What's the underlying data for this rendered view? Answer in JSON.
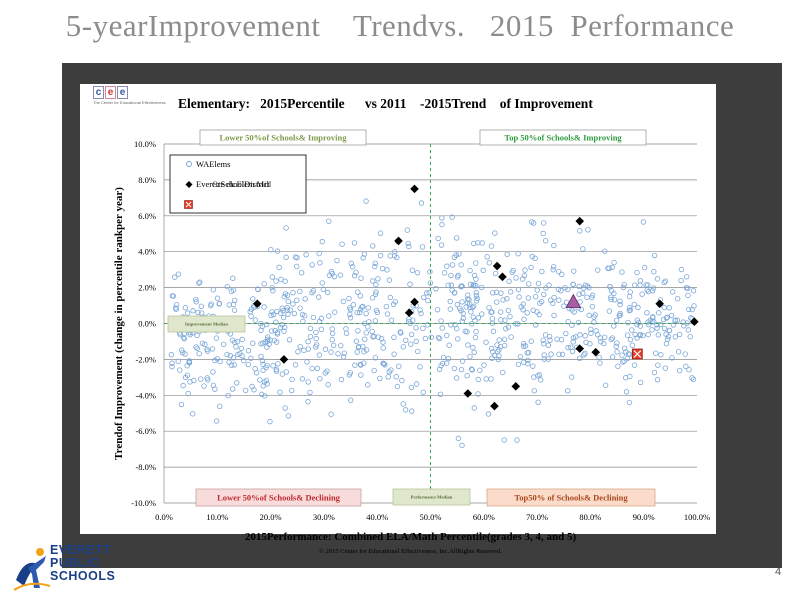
{
  "slide": {
    "title": "5-yearImprovement    Trendvs.   2015  Performance",
    "page_number": "4"
  },
  "logo": {
    "ceee_letters": [
      "c",
      "e",
      "e"
    ],
    "ceee_tagline": "The Center for Educational Effectiveness",
    "district_lines": [
      "EVERETT",
      "PUBLIC",
      "SCHOOLS"
    ]
  },
  "colors": {
    "background_band": "#3d3d3d",
    "wa_marker": "#7aa6d8",
    "district_marker": "#000000",
    "school_marker": "#e53d2a",
    "highlight_marker": "#a85ca6",
    "reference_line": "#3aa657",
    "title_gray": "#8c8c8c",
    "eps_blue": "#1b3f86"
  },
  "chart_data": {
    "type": "scatter",
    "title": "Elementary:   2015Percentile      vs 2011    -2015Trend    of Improvement",
    "xlabel": "2015Performance: Combined ELA/Math Percentile(grades 3, 4, and 5)",
    "ylabel": "Trendof Improvement (change in percentile   rankper year)",
    "xlim": [
      0,
      100
    ],
    "ylim": [
      -10,
      10
    ],
    "x_ticks": [
      "0.0%",
      "10.0%",
      "20.0%",
      "30.0%",
      "40.0%",
      "50.0%",
      "60.0%",
      "70.0%",
      "80.0%",
      "90.0%",
      "100.0%"
    ],
    "y_ticks": [
      "-10.0%",
      "-8.0%",
      "-6.0%",
      "-4.0%",
      "-2.0%",
      "0.0%",
      "2.0%",
      "4.0%",
      "6.0%",
      "8.0%",
      "10.0%"
    ],
    "grid": "horizontal",
    "legend_placement": "top-left",
    "legend": {
      "wa": "WAElems",
      "district": "EverettSchoolDistrict",
      "school_overlap": "Cre   ek  Elem   Mill"
    },
    "reference_lines": {
      "x": 50,
      "y": 0
    },
    "quadrant_labels": {
      "top_left": "Lower 50%of Schools& Improving",
      "top_right": "Top 50%of Schools& Improving",
      "bottom_left": "Lower 50%of Schools& Declining",
      "bottom_right": "Top50% of Schools& Declining",
      "mid_left": "Improvement     Median",
      "mid_bottom": "Performance     Median"
    },
    "copyright": "© 2015 Center for Educational Effectiveness, Inc.AllRights Reserved.",
    "series": [
      {
        "name": "EverettSchoolDistrict",
        "marker": "diamond",
        "points": [
          [
            17.5,
            1.1
          ],
          [
            22.5,
            -2.0
          ],
          [
            44.0,
            4.6
          ],
          [
            46.0,
            0.6
          ],
          [
            47.0,
            7.5
          ],
          [
            47.0,
            1.2
          ],
          [
            57.0,
            -3.9
          ],
          [
            62.0,
            -4.6
          ],
          [
            62.5,
            3.2
          ],
          [
            63.5,
            2.6
          ],
          [
            66.0,
            -3.5
          ],
          [
            78.0,
            5.7
          ],
          [
            78.0,
            -1.4
          ],
          [
            81.0,
            -1.6
          ],
          [
            93.0,
            1.1
          ],
          [
            99.5,
            0.1
          ]
        ]
      },
      {
        "name": "Cre   ek  Elem   Mill",
        "marker": "square-x",
        "points": [
          [
            88.8,
            -1.7
          ]
        ]
      },
      {
        "name": "",
        "marker": "triangle",
        "points": [
          [
            76.8,
            1.2
          ]
        ]
      }
    ]
  }
}
